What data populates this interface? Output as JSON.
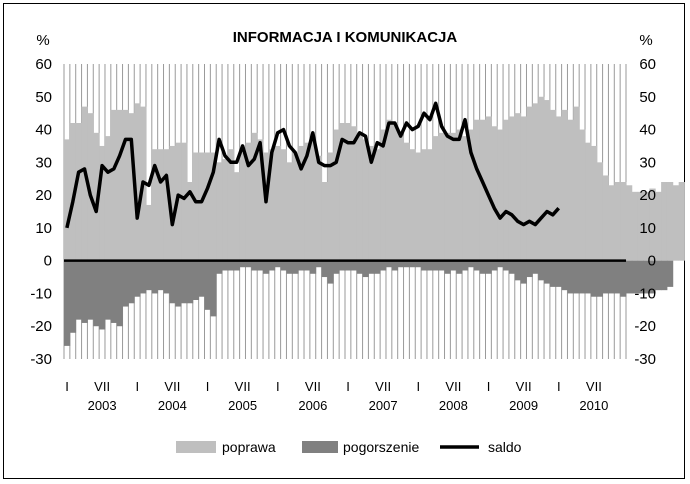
{
  "chart_data": {
    "type": "bar",
    "title": "INFORMACJA I KOMUNIKACJA",
    "ylabel_left": "%",
    "ylabel_right": "%",
    "ylim": [
      -30,
      60
    ],
    "yticks": [
      "60",
      "50",
      "40",
      "30",
      "20",
      "10",
      "0",
      "-10",
      "-20",
      "-30"
    ],
    "x_period_marks": [
      "I",
      "VII"
    ],
    "years": [
      "2003",
      "2004",
      "2005",
      "2006",
      "2007",
      "2008",
      "2009",
      "2010"
    ],
    "months_per_year": 12,
    "legend": [
      "poprawa",
      "pogorszenie",
      "saldo"
    ],
    "colors": {
      "poprawa": "#bfbfbf",
      "pogorszenie": "#808080",
      "saldo": "#000000",
      "stripe": "#9a9a9a"
    },
    "series": [
      {
        "name": "poprawa",
        "values": [
          37,
          42,
          42,
          47,
          45,
          39,
          35,
          38,
          46,
          46,
          46,
          45,
          48,
          47,
          17,
          34,
          34,
          34,
          35,
          36,
          36,
          24,
          33,
          33,
          33,
          33,
          30,
          31,
          34,
          27,
          33,
          36,
          39,
          37,
          33,
          34,
          35,
          34,
          30,
          33,
          35,
          36,
          37,
          32,
          24,
          33,
          40,
          42,
          42,
          41,
          39,
          37,
          35,
          34,
          40,
          43,
          42,
          38,
          36,
          34,
          33,
          34,
          34,
          38,
          39,
          39,
          39,
          40,
          38,
          40,
          43,
          43,
          44,
          41,
          40,
          43,
          44,
          45,
          44,
          47,
          48,
          50,
          49,
          46,
          44,
          46,
          43,
          47,
          40,
          36,
          35,
          30,
          26,
          23,
          24,
          24,
          23,
          21,
          21,
          21,
          22,
          21,
          24,
          24,
          23,
          24
        ],
        "start_index": 0
      },
      {
        "name": "pogorszenie",
        "values": [
          -26,
          -22,
          -18,
          -19,
          -18,
          -20,
          -21,
          -18,
          -19,
          -20,
          -14,
          -13,
          -11,
          -10,
          -9,
          -10,
          -9,
          -10,
          -13,
          -14,
          -13,
          -13,
          -12,
          -11,
          -15,
          -17,
          -4,
          -3,
          -3,
          -3,
          -2,
          -2,
          -3,
          -3,
          -4,
          -3,
          -2,
          -3,
          -4,
          -4,
          -3,
          -3,
          -4,
          -2,
          -5,
          -7,
          -4,
          -3,
          -3,
          -3,
          -4,
          -5,
          -4,
          -4,
          -3,
          -2,
          -3,
          -2,
          -2,
          -2,
          -2,
          -3,
          -3,
          -3,
          -3,
          -4,
          -3,
          -4,
          -3,
          -2,
          -3,
          -4,
          -4,
          -3,
          -2,
          -3,
          -4,
          -6,
          -7,
          -5,
          -4,
          -6,
          -7,
          -8,
          -8,
          -9,
          -10,
          -10,
          -10,
          -10,
          -11,
          -11,
          -10,
          -10,
          -10,
          -11,
          -10,
          -10,
          -10,
          -10,
          -10,
          -9,
          -9,
          -8
        ],
        "start_index": 0
      },
      {
        "name": "saldo",
        "values": [
          10,
          18,
          27,
          28,
          20,
          15,
          29,
          27,
          28,
          32,
          37,
          37,
          13,
          24,
          23,
          29,
          24,
          26,
          11,
          20,
          19,
          21,
          18,
          18,
          22,
          27,
          37,
          32,
          30,
          30,
          35,
          29,
          31,
          36,
          18,
          33,
          39,
          40,
          35,
          33,
          28,
          32,
          39,
          30,
          29,
          29,
          30,
          37,
          36,
          36,
          39,
          38,
          30,
          36,
          35,
          42,
          42,
          38,
          42,
          40,
          41,
          45,
          43,
          48,
          41,
          38,
          37,
          37,
          43,
          33,
          28,
          24,
          20,
          16,
          13,
          15,
          14,
          12,
          11,
          12,
          11,
          13,
          15,
          14,
          16
        ],
        "start_index": 0
      }
    ]
  }
}
